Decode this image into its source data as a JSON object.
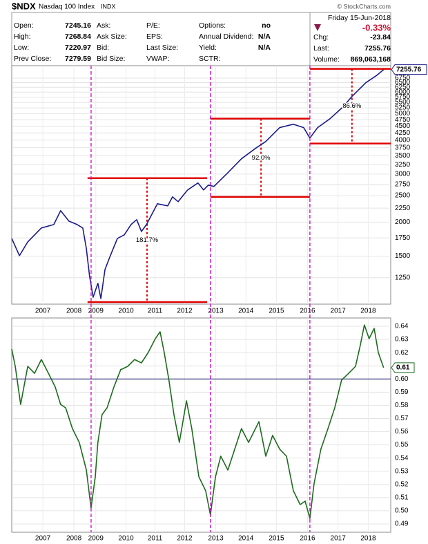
{
  "header": {
    "symbol": "$NDX",
    "name": "Nasdaq 100 Index",
    "exchange": "INDX",
    "copyright": "© StockCharts.com",
    "date": "Friday 15-Jun-2018",
    "col1": [
      [
        "Open:",
        "7245.16"
      ],
      [
        "High:",
        "7268.84"
      ],
      [
        "Low:",
        "7220.97"
      ],
      [
        "Prev Close:",
        "7279.59"
      ]
    ],
    "col2": [
      "Ask:",
      "Ask Size:",
      "Bid:",
      "Bid Size:"
    ],
    "col3": [
      "P/E:",
      "EPS:",
      "Last Size:",
      "VWAP:"
    ],
    "col4": [
      [
        "Options:",
        "no"
      ],
      [
        "Annual Dividend:",
        "N/A"
      ],
      [
        "Yield:",
        "N/A"
      ],
      [
        "SCTR:",
        ""
      ]
    ],
    "chg_pct": "-0.33%",
    "chg_label": "Chg:",
    "chg": "-23.84",
    "last_label": "Last:",
    "volume_label": "Volume:",
    "volume": "869,063,168"
  },
  "chart_data": [
    {
      "type": "line",
      "log": true,
      "color": "#1a1a8c",
      "x": [
        2005.95,
        2006.21,
        2006.49,
        2006.95,
        2007.37,
        2007.6,
        2007.88,
        2008.16,
        2008.35,
        2008.47,
        2008.58,
        2008.7,
        2008.86,
        2008.96,
        2009.1,
        2009.28,
        2009.52,
        2009.75,
        2009.98,
        2010.17,
        2010.33,
        2010.5,
        2010.87,
        2011.22,
        2011.38,
        2011.57,
        2011.89,
        2012.24,
        2012.43,
        2012.59,
        2012.78,
        2013.25,
        2013.71,
        2014.18,
        2014.53,
        2015.0,
        2015.46,
        2015.81,
        2016.02,
        2016.28,
        2016.7,
        2017.14,
        2017.44,
        2017.91,
        2018.26,
        2018.51
      ],
      "values": [
        1743,
        1506,
        1693,
        1903,
        1959,
        2202,
        2017,
        1959,
        1903,
        1597,
        1264,
        1060,
        1192,
        1048,
        1340,
        1506,
        1743,
        1795,
        1959,
        2041,
        1848,
        1959,
        2335,
        2294,
        2475,
        2376,
        2625,
        2783,
        2625,
        2734,
        2703,
        3037,
        3415,
        3728,
        3952,
        4443,
        4574,
        4443,
        4070,
        4443,
        4793,
        5294,
        5780,
        6497,
        6889,
        7255.76
      ],
      "xlim": [
        2005.95,
        2018.75
      ],
      "ylim": [
        1000,
        7500
      ],
      "yticks": [
        1250,
        1500,
        1750,
        2000,
        2250,
        2500,
        2750,
        3000,
        3250,
        3500,
        3750,
        4000,
        4250,
        4500,
        4750,
        5000,
        5250,
        5500,
        5750,
        6000,
        6250,
        6500,
        6750
      ],
      "xticks": [
        {
          "value": 2007.0,
          "label": "2007"
        },
        {
          "value": 2008.05,
          "label": "2008"
        },
        {
          "value": 2008.79,
          "label": "2009"
        },
        {
          "value": 2009.81,
          "label": "2010"
        },
        {
          "value": 2010.79,
          "label": "2011"
        },
        {
          "value": 2011.79,
          "label": "2012"
        },
        {
          "value": 2012.84,
          "label": "2013"
        },
        {
          "value": 2013.86,
          "label": "2014"
        },
        {
          "value": 2014.89,
          "label": "2015"
        },
        {
          "value": 2015.94,
          "label": "2016"
        },
        {
          "value": 2016.97,
          "label": "2017"
        },
        {
          "value": 2017.99,
          "label": "2018"
        }
      ],
      "last_value": 7255.76,
      "vlines": [
        2008.63,
        2012.66,
        2016.02
      ],
      "brackets": [
        {
          "x0": 2008.51,
          "x1": 2012.55,
          "at": 2010.52,
          "low": 1018,
          "high": 2899,
          "label": "181.7%"
        },
        {
          "x0": 2012.66,
          "x1": 2016.02,
          "at": 2014.37,
          "low": 2475,
          "high": 4793,
          "label": "92.0%"
        },
        {
          "x0": 2016.02,
          "x1": 2018.75,
          "at": 2017.44,
          "low": 3884,
          "high": 7302,
          "label": "86.6%"
        }
      ]
    },
    {
      "type": "line",
      "color": "#1d6b1d",
      "x": [
        2005.95,
        2006.07,
        2006.25,
        2006.49,
        2006.72,
        2006.95,
        2007.19,
        2007.42,
        2007.6,
        2007.77,
        2008.0,
        2008.23,
        2008.47,
        2008.63,
        2008.77,
        2008.86,
        2009.0,
        2009.17,
        2009.4,
        2009.63,
        2009.87,
        2010.1,
        2010.33,
        2010.56,
        2010.8,
        2010.96,
        2011.1,
        2011.26,
        2011.43,
        2011.61,
        2011.85,
        2012.03,
        2012.27,
        2012.5,
        2012.66,
        2012.83,
        2013.01,
        2013.25,
        2013.48,
        2013.71,
        2013.95,
        2014.3,
        2014.53,
        2014.76,
        2015.0,
        2015.23,
        2015.46,
        2015.69,
        2015.86,
        2016.02,
        2016.16,
        2016.39,
        2016.63,
        2016.86,
        2017.09,
        2017.33,
        2017.56,
        2017.72,
        2017.86,
        2018.02,
        2018.19,
        2018.33,
        2018.51
      ],
      "values": [
        0.6227,
        0.6096,
        0.5807,
        0.6096,
        0.6043,
        0.6148,
        0.6043,
        0.5939,
        0.5807,
        0.5781,
        0.5624,
        0.5519,
        0.5309,
        0.5021,
        0.5257,
        0.5519,
        0.5729,
        0.5781,
        0.5939,
        0.607,
        0.6096,
        0.6148,
        0.6122,
        0.6201,
        0.6306,
        0.6358,
        0.6201,
        0.5991,
        0.5729,
        0.5519,
        0.5834,
        0.5624,
        0.5257,
        0.5152,
        0.4968,
        0.5257,
        0.5414,
        0.5309,
        0.5467,
        0.5624,
        0.5519,
        0.5676,
        0.5414,
        0.5572,
        0.5467,
        0.5414,
        0.5152,
        0.5047,
        0.5073,
        0.4942,
        0.5204,
        0.5467,
        0.5624,
        0.5781,
        0.5991,
        0.6043,
        0.6096,
        0.6253,
        0.641,
        0.6306,
        0.6384,
        0.6201,
        0.6086
      ],
      "xlim": [
        2005.95,
        2018.75
      ],
      "ylim": [
        0.4837,
        0.6463
      ],
      "yticks": [
        {
          "value": 0.49,
          "label": "0.49"
        },
        {
          "value": 0.5,
          "label": "0.50"
        },
        {
          "value": 0.51,
          "label": "0.51"
        },
        {
          "value": 0.52,
          "label": "0.52"
        },
        {
          "value": 0.53,
          "label": "0.53"
        },
        {
          "value": 0.54,
          "label": "0.54"
        },
        {
          "value": 0.55,
          "label": "0.55"
        },
        {
          "value": 0.56,
          "label": "0.56"
        },
        {
          "value": 0.57,
          "label": "0.57"
        },
        {
          "value": 0.58,
          "label": "0.58"
        },
        {
          "value": 0.59,
          "label": "0.59"
        },
        {
          "value": 0.6,
          "label": "0.60"
        },
        {
          "value": 0.61,
          "label": "0.61"
        },
        {
          "value": 0.62,
          "label": "0.62"
        },
        {
          "value": 0.63,
          "label": "0.63"
        },
        {
          "value": 0.64,
          "label": "0.64"
        }
      ],
      "xticks": [
        {
          "value": 2007.0,
          "label": "2007"
        },
        {
          "value": 2008.05,
          "label": "2008"
        },
        {
          "value": 2008.79,
          "label": "2009"
        },
        {
          "value": 2009.81,
          "label": "2010"
        },
        {
          "value": 2010.79,
          "label": "2011"
        },
        {
          "value": 2011.79,
          "label": "2012"
        },
        {
          "value": 2012.84,
          "label": "2013"
        },
        {
          "value": 2013.86,
          "label": "2014"
        },
        {
          "value": 2014.89,
          "label": "2015"
        },
        {
          "value": 2015.94,
          "label": "2016"
        },
        {
          "value": 2016.97,
          "label": "2017"
        },
        {
          "value": 2017.99,
          "label": "2018"
        }
      ],
      "hline": 0.6,
      "last_value": 0.6086,
      "last_label": "0.61"
    }
  ]
}
